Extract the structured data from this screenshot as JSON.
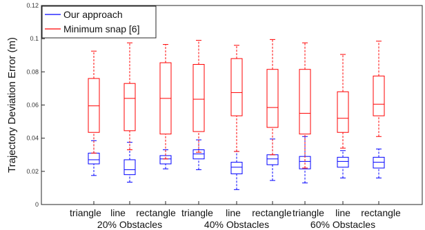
{
  "chart_data": {
    "type": "box",
    "ylabel": "Trajectory Deviation Error (m)",
    "xlabel": "",
    "ylim": [
      0,
      0.12
    ],
    "yticks": [
      0,
      0.02,
      0.04,
      0.06,
      0.08,
      0.1,
      0.12
    ],
    "ytick_labels": [
      "0",
      "0.02",
      "0.04",
      "0.06",
      "0.08",
      "0.1",
      "0.12"
    ],
    "legend_position": "top-left",
    "grid": false,
    "categories": [
      "triangle",
      "line",
      "rectangle",
      "triangle",
      "line",
      "rectangle",
      "triangle",
      "line",
      "rectangle"
    ],
    "groups": [
      "20% Obstacles",
      "40% Obstacles",
      "60% Obstacles"
    ],
    "series": [
      {
        "name": "Our approach",
        "color": "#0000ff",
        "boxes": [
          {
            "whislo": 0.0175,
            "q1": 0.0245,
            "med": 0.027,
            "q3": 0.031,
            "whishi": 0.0385
          },
          {
            "whislo": 0.0135,
            "q1": 0.018,
            "med": 0.021,
            "q3": 0.027,
            "whishi": 0.0375
          },
          {
            "whislo": 0.0215,
            "q1": 0.0245,
            "med": 0.0275,
            "q3": 0.0295,
            "whishi": 0.033
          },
          {
            "whislo": 0.021,
            "q1": 0.0275,
            "med": 0.0305,
            "q3": 0.033,
            "whishi": 0.039
          },
          {
            "whislo": 0.009,
            "q1": 0.0185,
            "med": 0.0225,
            "q3": 0.0255,
            "whishi": 0.032
          },
          {
            "whislo": 0.0145,
            "q1": 0.024,
            "med": 0.0275,
            "q3": 0.03,
            "whishi": 0.0395
          },
          {
            "whislo": 0.013,
            "q1": 0.0215,
            "med": 0.026,
            "q3": 0.029,
            "whishi": 0.041
          },
          {
            "whislo": 0.016,
            "q1": 0.0225,
            "med": 0.026,
            "q3": 0.0285,
            "whishi": 0.0325
          },
          {
            "whislo": 0.016,
            "q1": 0.022,
            "med": 0.0255,
            "q3": 0.0285,
            "whishi": 0.0335
          }
        ]
      },
      {
        "name": "Minimum snap [6]",
        "color": "#ff0000",
        "boxes": [
          {
            "whislo": 0.031,
            "q1": 0.0435,
            "med": 0.0595,
            "q3": 0.076,
            "whishi": 0.0925
          },
          {
            "whislo": 0.033,
            "q1": 0.0445,
            "med": 0.064,
            "q3": 0.073,
            "whishi": 0.0975
          },
          {
            "whislo": 0.0275,
            "q1": 0.0425,
            "med": 0.064,
            "q3": 0.0855,
            "whishi": 0.0965
          },
          {
            "whislo": 0.0315,
            "q1": 0.044,
            "med": 0.0635,
            "q3": 0.0845,
            "whishi": 0.099
          },
          {
            "whislo": 0.032,
            "q1": 0.0535,
            "med": 0.0675,
            "q3": 0.088,
            "whishi": 0.096
          },
          {
            "whislo": 0.03,
            "q1": 0.0465,
            "med": 0.0585,
            "q3": 0.0815,
            "whishi": 0.0995
          },
          {
            "whislo": 0.022,
            "q1": 0.0425,
            "med": 0.055,
            "q3": 0.0815,
            "whishi": 0.0975
          },
          {
            "whislo": 0.034,
            "q1": 0.0435,
            "med": 0.052,
            "q3": 0.068,
            "whishi": 0.0905
          },
          {
            "whislo": 0.041,
            "q1": 0.0535,
            "med": 0.0605,
            "q3": 0.0775,
            "whishi": 0.0985
          }
        ]
      }
    ]
  }
}
